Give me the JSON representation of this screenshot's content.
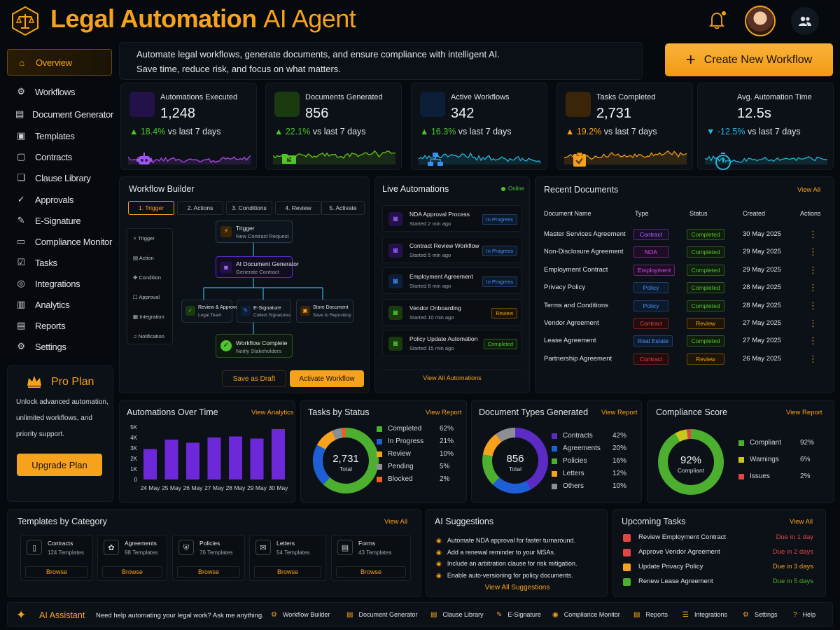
{
  "header": {
    "title_bold": "Legal Automation",
    "title_light": "AI Agent",
    "create_button": "Create New Workflow"
  },
  "intro": {
    "line1": "Automate legal workflows, generate documents, and ensure compliance with intelligent AI.",
    "line2": "Save time, reduce risk, and focus on what matters."
  },
  "sidebar": {
    "items": [
      {
        "label": "Overview"
      },
      {
        "label": "Workflows"
      },
      {
        "label": "Document Generator"
      },
      {
        "label": "Templates"
      },
      {
        "label": "Contracts"
      },
      {
        "label": "Clause Library"
      },
      {
        "label": "Approvals"
      },
      {
        "label": "E-Signature"
      },
      {
        "label": "Compliance Monitor"
      },
      {
        "label": "Tasks"
      },
      {
        "label": "Integrations"
      },
      {
        "label": "Analytics"
      },
      {
        "label": "Reports"
      },
      {
        "label": "Settings"
      }
    ],
    "pro": {
      "title": "Pro Plan",
      "line1": "Unlock advanced automation,",
      "line2": "unlimited workflows, and",
      "line3": "priority support.",
      "button": "Upgrade Plan"
    }
  },
  "kpis": [
    {
      "label": "Automations Executed",
      "value": "1,248",
      "arrow": "▲",
      "change": "18.4%",
      "suffix": "vs last 7 days",
      "color": "#4cc62c"
    },
    {
      "label": "Documents Generated",
      "value": "856",
      "arrow": "▲",
      "change": "22.1%",
      "suffix": "vs last 7 days",
      "color": "#4cc62c"
    },
    {
      "label": "Active Workflows",
      "value": "342",
      "arrow": "▲",
      "change": "16.3%",
      "suffix": "vs last 7 days",
      "color": "#4cc62c"
    },
    {
      "label": "Tasks Completed",
      "value": "2,731",
      "arrow": "▲",
      "change": "19.2%",
      "suffix": "vs last 7 days",
      "color": "#f6a21c"
    },
    {
      "label": "Avg. Automation Time",
      "value": "12.5s",
      "arrow": "▼",
      "change": "-12.5%",
      "suffix": "vs last 7 days",
      "color": "#27b7e0"
    }
  ],
  "builder": {
    "title": "Workflow Builder",
    "steps": [
      "1. Trigger",
      "2. Actions",
      "3. Conditions",
      "4. Review",
      "5. Activate"
    ],
    "palette": [
      "Trigger",
      "Action",
      "Condition",
      "Approval",
      "Integration",
      "Notification"
    ],
    "nodes": {
      "trigger": {
        "title": "Trigger",
        "sub": "New Contract Request"
      },
      "ai": {
        "title": "AI Document Generator",
        "sub": "Generate Contract"
      },
      "review": {
        "title": "Review & Approve",
        "sub": "Legal Team"
      },
      "esign": {
        "title": "E-Signature",
        "sub": "Collect Signatures"
      },
      "store": {
        "title": "Store Document",
        "sub": "Save to Repository"
      },
      "complete": {
        "title": "Workflow Complete",
        "sub": "Notify Stakeholders"
      }
    },
    "save_draft": "Save as Draft",
    "activate": "Activate Workflow"
  },
  "live": {
    "title": "Live Automations",
    "status": "Online",
    "items": [
      {
        "name": "NDA Approval Process",
        "time": "Started 2 min ago",
        "status": "In Progress"
      },
      {
        "name": "Contract Review Workflow",
        "time": "Started 5 min ago",
        "status": "In Progress"
      },
      {
        "name": "Employment Agreement",
        "time": "Started 8 min ago",
        "status": "In Progress"
      },
      {
        "name": "Vendor Onboarding",
        "time": "Started 10 min ago",
        "status": "Review"
      },
      {
        "name": "Policy Update Automation",
        "time": "Started 15 min ago",
        "status": "Completed"
      }
    ],
    "view_all": "View All Automations"
  },
  "recent": {
    "title": "Recent Documents",
    "view_all": "View All",
    "headers": [
      "Document Name",
      "Type",
      "Status",
      "Created",
      "Actions"
    ],
    "rows": [
      {
        "name": "Master Services Agreement",
        "type": "Contract",
        "status": "Completed",
        "date": "30 May 2025"
      },
      {
        "name": "Non-Disclosure Agreement",
        "type": "NDA",
        "status": "Completed",
        "date": "29 May 2025"
      },
      {
        "name": "Employment Contract",
        "type": "Employment",
        "status": "Completed",
        "date": "29 May 2025"
      },
      {
        "name": "Privacy Policy",
        "type": "Policy",
        "status": "Completed",
        "date": "28 May 2025"
      },
      {
        "name": "Terms and Conditions",
        "type": "Policy",
        "status": "Completed",
        "date": "28 May 2025"
      },
      {
        "name": "Vendor Agreement",
        "type": "Contract",
        "status": "Review",
        "date": "27 May 2025"
      },
      {
        "name": "Lease Agreement",
        "type": "Real Estate",
        "status": "Completed",
        "date": "27 May 2025"
      },
      {
        "name": "Partnership Agreement",
        "type": "Contract",
        "status": "Review",
        "date": "26 May 2025"
      }
    ],
    "action_icon": "⋮"
  },
  "automations_chart": {
    "title": "Automations Over Time",
    "link": "View Analytics"
  },
  "chart_data": [
    {
      "type": "bar",
      "title": "Automations Over Time",
      "categories": [
        "24 May",
        "25 May",
        "26 May",
        "27 May",
        "28 May",
        "29 May",
        "30 May"
      ],
      "values": [
        2900,
        3800,
        3500,
        4000,
        4100,
        3900,
        4800
      ],
      "yticks": [
        "5K",
        "4K",
        "3K",
        "2K",
        "1K",
        "0"
      ],
      "ylim": [
        0,
        5000
      ],
      "color": "#6d28d9"
    },
    {
      "type": "pie",
      "title": "Tasks by Status",
      "center_value": "2,731",
      "center_label": "Total",
      "labels": [
        "Completed",
        "In Progress",
        "Review",
        "Pending",
        "Blocked"
      ],
      "values": [
        62,
        21,
        10,
        5,
        2
      ],
      "display": [
        "62%",
        "21%",
        "10%",
        "5%",
        "2%"
      ],
      "colors": [
        "#4caf30",
        "#1e5fd6",
        "#f6a21c",
        "#8d8f94",
        "#e8621c"
      ]
    },
    {
      "type": "pie",
      "title": "Document Types Generated",
      "center_value": "856",
      "center_label": "Total",
      "labels": [
        "Contracts",
        "Agreements",
        "Policies",
        "Letters",
        "Others"
      ],
      "values": [
        42,
        20,
        16,
        12,
        10
      ],
      "display": [
        "42%",
        "20%",
        "16%",
        "12%",
        "10%"
      ],
      "colors": [
        "#5b2bc4",
        "#1e5fd6",
        "#4caf30",
        "#f6a21c",
        "#8d8f94"
      ]
    },
    {
      "type": "pie",
      "title": "Compliance Score",
      "center_value": "92%",
      "center_label": "Compliant",
      "labels": [
        "Compliant",
        "Warnings",
        "Issues"
      ],
      "values": [
        92,
        6,
        2
      ],
      "display": [
        "92%",
        "6%",
        "2%"
      ],
      "colors": [
        "#4caf30",
        "#c8c81c",
        "#e34545"
      ]
    }
  ],
  "tasks_chart": {
    "title": "Tasks by Status",
    "link": "View Report"
  },
  "doctypes_chart": {
    "title": "Document Types Generated",
    "link": "View Report"
  },
  "compliance_chart": {
    "title": "Compliance Score",
    "link": "View Report"
  },
  "templates": {
    "title": "Templates by Category",
    "view_all": "View All",
    "items": [
      {
        "name": "Contracts",
        "count": "124 Templates",
        "button": "Browse"
      },
      {
        "name": "Agreements",
        "count": "98 Templates",
        "button": "Browse"
      },
      {
        "name": "Policies",
        "count": "76 Templates",
        "button": "Browse"
      },
      {
        "name": "Letters",
        "count": "54 Templates",
        "button": "Browse"
      },
      {
        "name": "Forms",
        "count": "43 Templates",
        "button": "Browse"
      }
    ]
  },
  "suggestions": {
    "title": "AI Suggestions",
    "items": [
      "Automate NDA approval for faster turnaround.",
      "Add a renewal reminder to your MSAs.",
      "Include an arbitration clause for risk mitigation.",
      "Enable auto-versioning for policy documents."
    ],
    "view_all": "View All Suggestions"
  },
  "upcoming": {
    "title": "Upcoming Tasks",
    "view_all": "View All",
    "items": [
      {
        "name": "Review Employment Contract",
        "due": "Due in 1 day",
        "color": "#e34545"
      },
      {
        "name": "Approve Vendor Agreement",
        "due": "Due in 2 days",
        "color": "#e34545"
      },
      {
        "name": "Update Privacy Policy",
        "due": "Due in 3 days",
        "color": "#f6a21c"
      },
      {
        "name": "Renew Lease Agreement",
        "due": "Due in 5 days",
        "color": "#4caf30"
      }
    ]
  },
  "assistant": {
    "title": "AI Assistant",
    "prompt": "Need help automating your legal work? Ask me anything.",
    "links": [
      "Workflow Builder",
      "Document Generator",
      "Clause Library",
      "E-Signature",
      "Compliance Monitor",
      "Reports",
      "Integrations",
      "Settings",
      "Help"
    ]
  }
}
